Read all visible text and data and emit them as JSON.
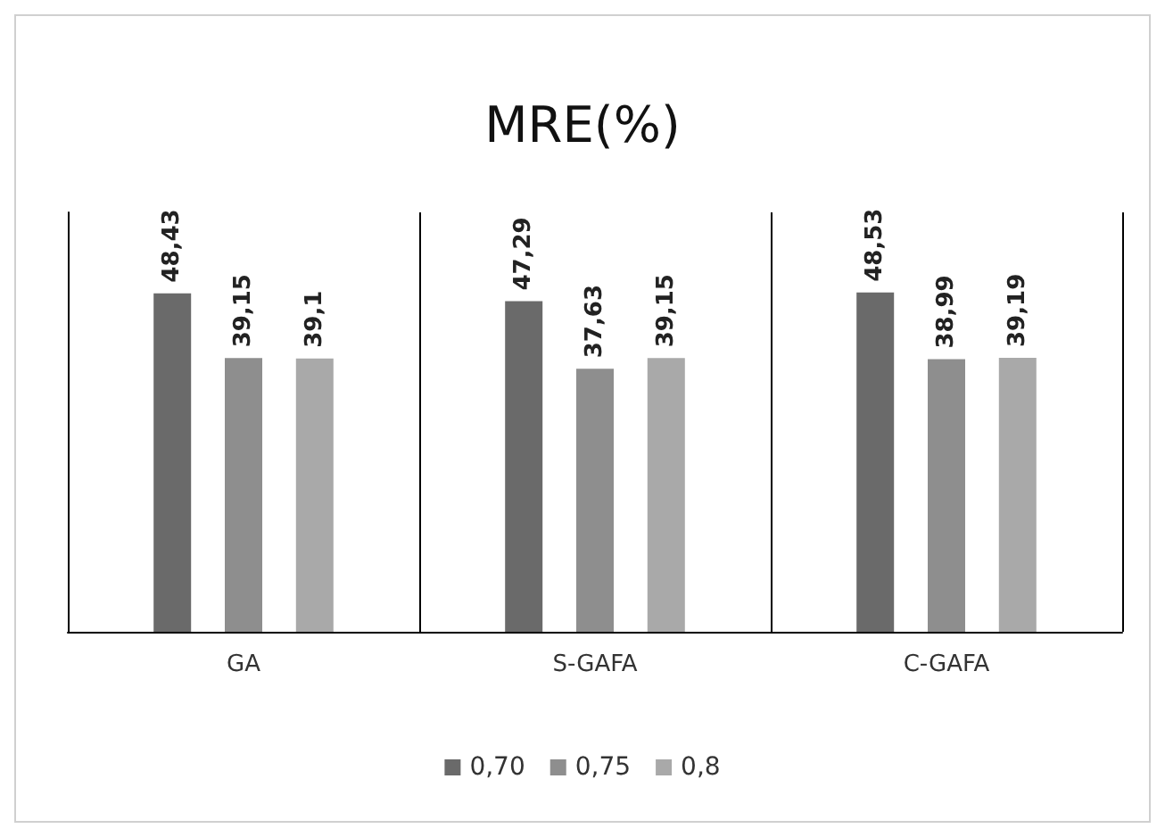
{
  "chart_data": {
    "type": "bar",
    "title": "MRE(%)",
    "categories": [
      "GA",
      "S-GAFA",
      "C-GAFA"
    ],
    "ylim": [
      0,
      60
    ],
    "legend": "bottom",
    "grid": false,
    "tick_labels": "x",
    "series": [
      {
        "name": "0,70",
        "color": "#6a6a6a",
        "values": [
          48.43,
          47.29,
          48.53
        ],
        "value_labels": [
          "48,43",
          "47,29",
          "48,53"
        ]
      },
      {
        "name": "0,75",
        "color": "#8e8e8e",
        "values": [
          39.15,
          37.63,
          38.99
        ],
        "value_labels": [
          "39,15",
          "37,63",
          "38,99"
        ]
      },
      {
        "name": "0,8",
        "color": "#a9a9a9",
        "values": [
          39.1,
          39.15,
          39.19
        ],
        "value_labels": [
          "39,1",
          "39,15",
          "39,19"
        ]
      }
    ]
  }
}
